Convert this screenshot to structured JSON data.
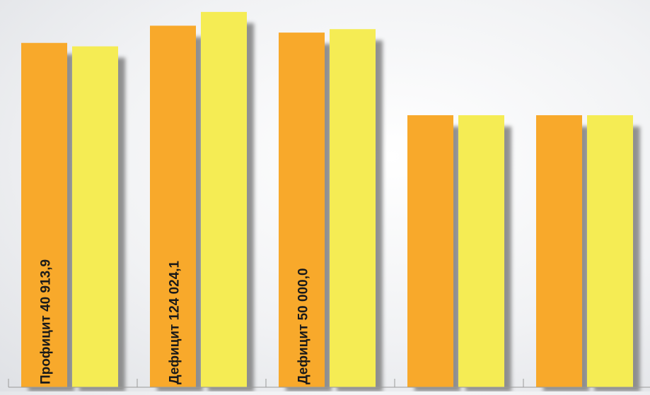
{
  "chart_data": {
    "type": "bar",
    "categories": [
      "",
      "",
      "",
      "",
      ""
    ],
    "series": [
      {
        "values": [
          1.0,
          1.05,
          1.03,
          0.79,
          0.79
        ],
        "color": "#F8A92B"
      },
      {
        "values": [
          0.99,
          1.09,
          1.04,
          0.79,
          0.79
        ],
        "color": "#F5EC54"
      }
    ],
    "ylim": [
      0,
      1.1
    ],
    "grid": false,
    "annotations": [
      {
        "category_index": 0,
        "text": "Профицит 40 913,9"
      },
      {
        "category_index": 1,
        "text": "Дефицит 124 024,1"
      },
      {
        "category_index": 2,
        "text": "Дефицит 50 000,0"
      }
    ],
    "colors": {
      "shadow": "#7f7f7f",
      "axis": "#9a9a9a",
      "label": "#1a1a1a"
    }
  }
}
